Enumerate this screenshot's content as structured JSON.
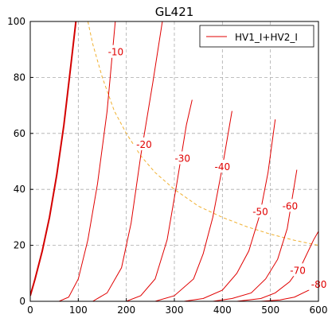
{
  "chart_data": {
    "type": "line",
    "title": "GL421",
    "xlabel": "",
    "ylabel": "",
    "xlim": [
      0,
      600
    ],
    "ylim": [
      0,
      100
    ],
    "x_ticks": [
      0,
      100,
      200,
      300,
      400,
      500,
      600
    ],
    "y_ticks": [
      0,
      20,
      40,
      60,
      80,
      100
    ],
    "grid": true,
    "legend": {
      "placement": "top-right",
      "entries": [
        "HV1_I+HV2_I"
      ]
    },
    "colors": {
      "curves": "#e00000",
      "bold_curve": "#d40000",
      "power_limit": "#f0b030",
      "grid": "#aaaaaa"
    },
    "series": [
      {
        "grid_voltage": "0",
        "bold": true,
        "points": [
          [
            0,
            2
          ],
          [
            10,
            8
          ],
          [
            25,
            18
          ],
          [
            40,
            30
          ],
          [
            55,
            45
          ],
          [
            70,
            63
          ],
          [
            85,
            85
          ],
          [
            95,
            100
          ]
        ]
      },
      {
        "grid_voltage": "-10",
        "label": "-10",
        "label_at": [
          178,
          89
        ],
        "points": [
          [
            60,
            0
          ],
          [
            80,
            1.5
          ],
          [
            100,
            8
          ],
          [
            120,
            22
          ],
          [
            140,
            42
          ],
          [
            160,
            68
          ],
          [
            177,
            100
          ]
        ]
      },
      {
        "grid_voltage": "-20",
        "label": "-20",
        "label_at": [
          237,
          56
        ],
        "points": [
          [
            130,
            0
          ],
          [
            160,
            3
          ],
          [
            190,
            12
          ],
          [
            210,
            28
          ],
          [
            230,
            52
          ],
          [
            255,
            78
          ],
          [
            275,
            100
          ]
        ]
      },
      {
        "grid_voltage": "-30",
        "label": "-30",
        "label_at": [
          317,
          51
        ],
        "points": [
          [
            200,
            0
          ],
          [
            230,
            2
          ],
          [
            260,
            8
          ],
          [
            285,
            22
          ],
          [
            305,
            42
          ],
          [
            325,
            63
          ],
          [
            337,
            72
          ]
        ]
      },
      {
        "grid_voltage": "-40",
        "label": "-40",
        "label_at": [
          400,
          48
        ],
        "points": [
          [
            260,
            0
          ],
          [
            300,
            2
          ],
          [
            340,
            8
          ],
          [
            360,
            17
          ],
          [
            380,
            30
          ],
          [
            400,
            48
          ],
          [
            420,
            68
          ]
        ]
      },
      {
        "grid_voltage": "-50",
        "label": "-50",
        "label_at": [
          479,
          32
        ],
        "points": [
          [
            320,
            0
          ],
          [
            360,
            1
          ],
          [
            400,
            4
          ],
          [
            430,
            10
          ],
          [
            455,
            18
          ],
          [
            478,
            31
          ],
          [
            495,
            46
          ],
          [
            510,
            65
          ]
        ]
      },
      {
        "grid_voltage": "-60",
        "label": "-60",
        "label_at": [
          541,
          34
        ],
        "points": [
          [
            380,
            0
          ],
          [
            420,
            1
          ],
          [
            460,
            3
          ],
          [
            490,
            8
          ],
          [
            515,
            15
          ],
          [
            535,
            26
          ],
          [
            555,
            47
          ]
        ]
      },
      {
        "grid_voltage": "-70",
        "label": "-70",
        "label_at": [
          557,
          11
        ],
        "points": [
          [
            430,
            0
          ],
          [
            480,
            1
          ],
          [
            510,
            3
          ],
          [
            540,
            7
          ],
          [
            565,
            13
          ],
          [
            590,
            22
          ],
          [
            600,
            25
          ]
        ]
      },
      {
        "grid_voltage": "-80",
        "label": "-80",
        "label_at": [
          601,
          6
        ],
        "points": [
          [
            480,
            0
          ],
          [
            520,
            0.5
          ],
          [
            550,
            1.5
          ],
          [
            580,
            4
          ],
          [
            600,
            7
          ]
        ]
      }
    ],
    "power_limit_curve": {
      "style": "dashed",
      "points": [
        [
          120,
          100
        ],
        [
          130,
          92
        ],
        [
          150,
          80
        ],
        [
          175,
          68
        ],
        [
          200,
          60
        ],
        [
          230,
          52
        ],
        [
          260,
          46
        ],
        [
          300,
          40
        ],
        [
          350,
          34
        ],
        [
          400,
          30
        ],
        [
          450,
          26.7
        ],
        [
          500,
          24
        ],
        [
          550,
          21.8
        ],
        [
          600,
          20
        ]
      ]
    }
  }
}
